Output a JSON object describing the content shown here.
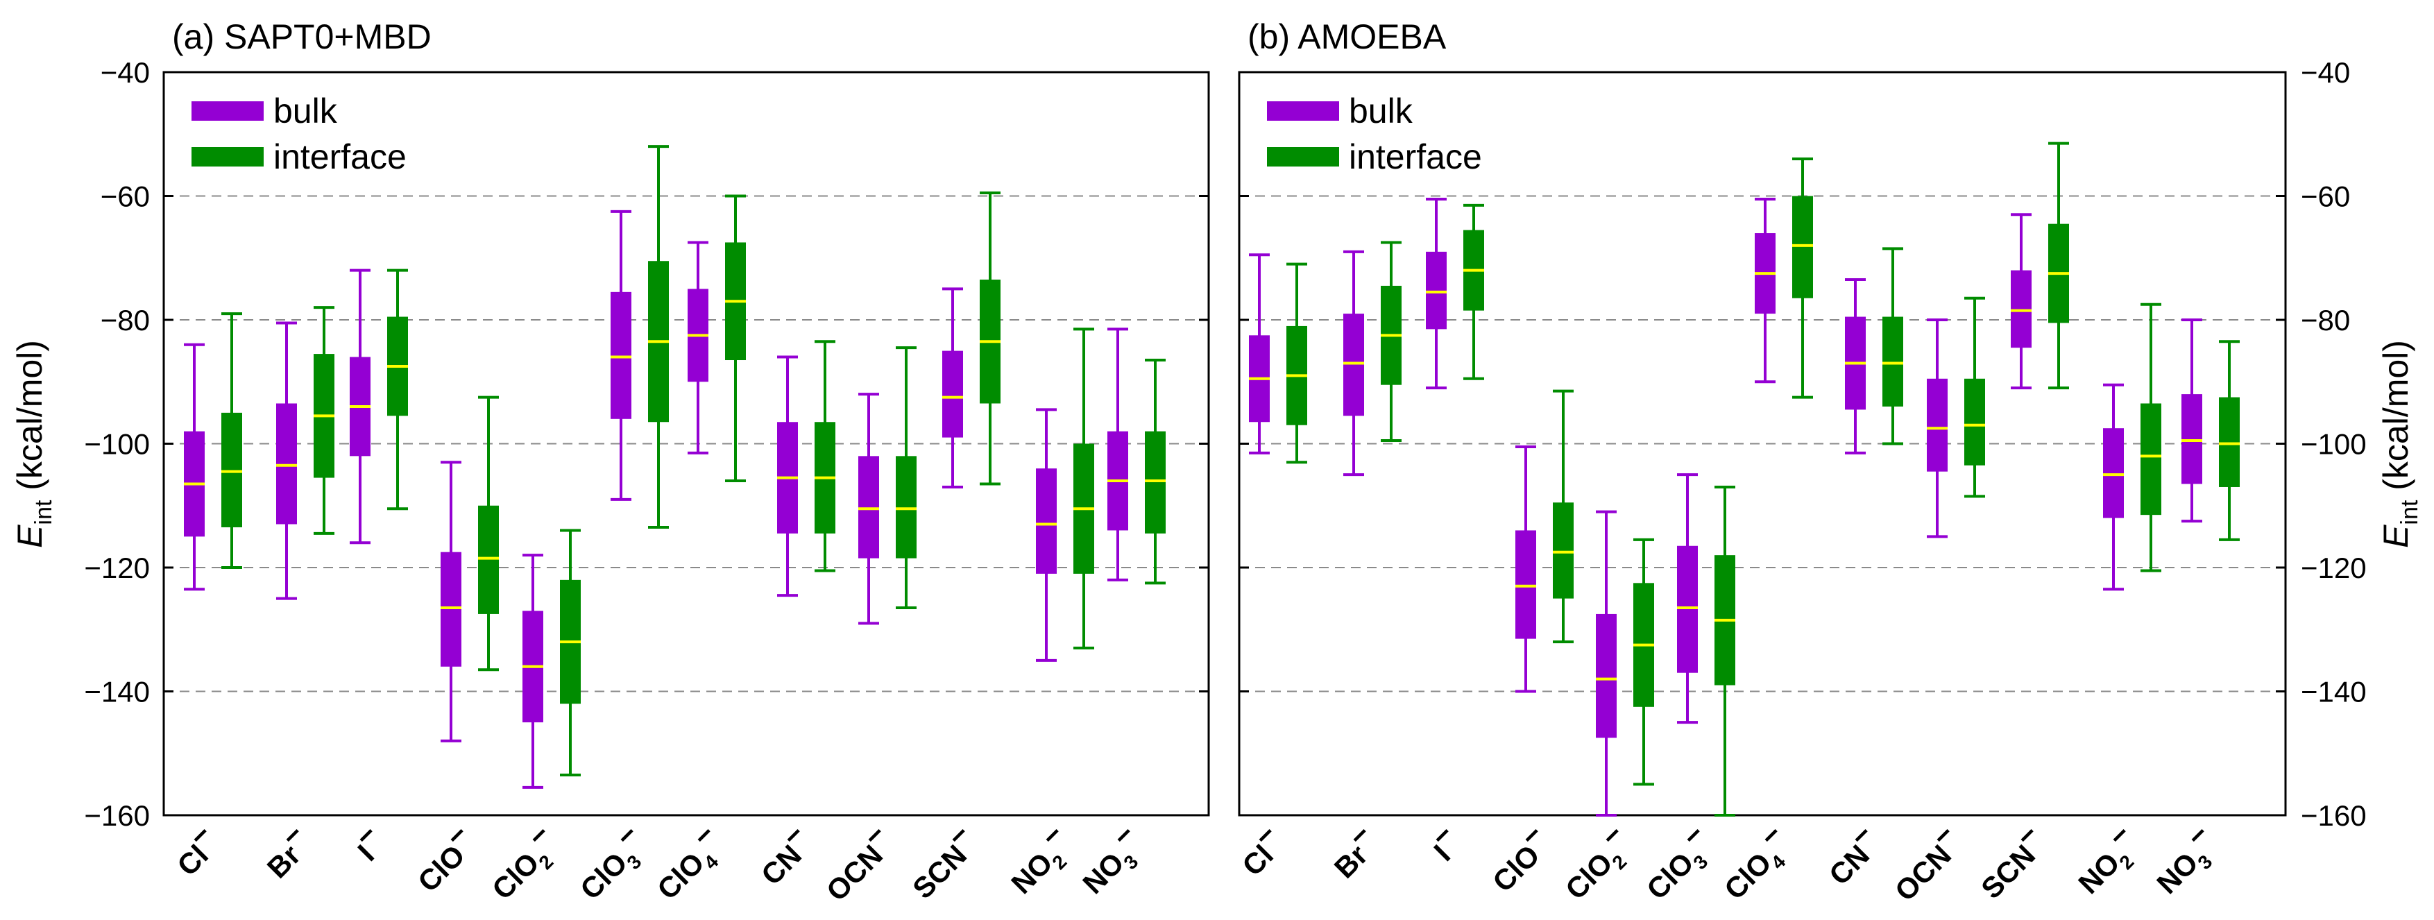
{
  "ylabel": {
    "main": "E",
    "sub": "int",
    "unit": " (kcal/mol)"
  },
  "chart_data": [
    {
      "type": "boxplot",
      "title": "(a) SAPT0+MBD",
      "ylim": [
        -160,
        -40
      ],
      "yticks": [
        -160,
        -140,
        -120,
        -100,
        -80,
        -60,
        -40
      ],
      "grid": "horizontal-dashed",
      "legend_position": "top-left",
      "legend": [
        "bulk",
        "interface"
      ],
      "categories": [
        {
          "base": "Cl",
          "sub": "",
          "sup": "−"
        },
        {
          "base": "Br",
          "sub": "",
          "sup": "−"
        },
        {
          "base": "I",
          "sub": "",
          "sup": "−"
        },
        {
          "base": "ClO",
          "sub": "",
          "sup": "−"
        },
        {
          "base": "ClO",
          "sub": "2",
          "sup": "−"
        },
        {
          "base": "ClO",
          "sub": "3",
          "sup": "−"
        },
        {
          "base": "ClO",
          "sub": "4",
          "sup": "−"
        },
        {
          "base": "CN",
          "sub": "",
          "sup": "−"
        },
        {
          "base": "OCN",
          "sub": "",
          "sup": "−"
        },
        {
          "base": "SCN",
          "sub": "",
          "sup": "−"
        },
        {
          "base": "NO",
          "sub": "2",
          "sup": "−"
        },
        {
          "base": "NO",
          "sub": "3",
          "sup": "−"
        }
      ],
      "series": [
        {
          "name": "bulk",
          "color": "#9400D3",
          "median_color": "#FFFF00",
          "boxes": [
            {
              "min": -123.5,
              "q1": -115,
              "median": -106.5,
              "q3": -98,
              "max": -84
            },
            {
              "min": -125,
              "q1": -113,
              "median": -103.5,
              "q3": -93.5,
              "max": -80.5
            },
            {
              "min": -116,
              "q1": -102,
              "median": -94,
              "q3": -86,
              "max": -72
            },
            {
              "min": -148,
              "q1": -136,
              "median": -126.5,
              "q3": -117.5,
              "max": -103
            },
            {
              "min": -155.5,
              "q1": -145,
              "median": -136,
              "q3": -127,
              "max": -118
            },
            {
              "min": -109,
              "q1": -96,
              "median": -86,
              "q3": -75.5,
              "max": -62.5
            },
            {
              "min": -101.5,
              "q1": -90,
              "median": -82.5,
              "q3": -75,
              "max": -67.5
            },
            {
              "min": -124.5,
              "q1": -114.5,
              "median": -105.5,
              "q3": -96.5,
              "max": -86
            },
            {
              "min": -129,
              "q1": -118.5,
              "median": -110.5,
              "q3": -102,
              "max": -92
            },
            {
              "min": -107,
              "q1": -99,
              "median": -92.5,
              "q3": -85,
              "max": -75
            },
            {
              "min": -135,
              "q1": -121,
              "median": -113,
              "q3": -104,
              "max": -94.5
            },
            {
              "min": -122,
              "q1": -114,
              "median": -106,
              "q3": -98,
              "max": -81.5
            }
          ]
        },
        {
          "name": "interface",
          "color": "#008C00",
          "median_color": "#FFFF00",
          "boxes": [
            {
              "min": -120,
              "q1": -113.5,
              "median": -104.5,
              "q3": -95,
              "max": -79
            },
            {
              "min": -114.5,
              "q1": -105.5,
              "median": -95.5,
              "q3": -85.5,
              "max": -78
            },
            {
              "min": -110.5,
              "q1": -95.5,
              "median": -87.5,
              "q3": -79.5,
              "max": -72
            },
            {
              "min": -136.5,
              "q1": -127.5,
              "median": -118.5,
              "q3": -110,
              "max": -92.5
            },
            {
              "min": -153.5,
              "q1": -142,
              "median": -132,
              "q3": -122,
              "max": -114
            },
            {
              "min": -113.5,
              "q1": -96.5,
              "median": -83.5,
              "q3": -70.5,
              "max": -52
            },
            {
              "min": -106,
              "q1": -86.5,
              "median": -77,
              "q3": -67.5,
              "max": -60
            },
            {
              "min": -120.5,
              "q1": -114.5,
              "median": -105.5,
              "q3": -96.5,
              "max": -83.5
            },
            {
              "min": -126.5,
              "q1": -118.5,
              "median": -110.5,
              "q3": -102,
              "max": -84.5
            },
            {
              "min": -106.5,
              "q1": -93.5,
              "median": -83.5,
              "q3": -73.5,
              "max": -59.5
            },
            {
              "min": -133,
              "q1": -121,
              "median": -110.5,
              "q3": -100,
              "max": -81.5
            },
            {
              "min": -122.5,
              "q1": -114.5,
              "median": -106,
              "q3": -98,
              "max": -86.5
            }
          ]
        }
      ]
    },
    {
      "type": "boxplot",
      "title": "(b) AMOEBA",
      "ylim": [
        -160,
        -40
      ],
      "yticks": [
        -160,
        -140,
        -120,
        -100,
        -80,
        -60,
        -40
      ],
      "grid": "horizontal-dashed",
      "legend_position": "top-left",
      "legend": [
        "bulk",
        "interface"
      ],
      "categories": [
        {
          "base": "Cl",
          "sub": "",
          "sup": "−"
        },
        {
          "base": "Br",
          "sub": "",
          "sup": "−"
        },
        {
          "base": "I",
          "sub": "",
          "sup": "−"
        },
        {
          "base": "ClO",
          "sub": "",
          "sup": "−"
        },
        {
          "base": "ClO",
          "sub": "2",
          "sup": "−"
        },
        {
          "base": "ClO",
          "sub": "3",
          "sup": "−"
        },
        {
          "base": "ClO",
          "sub": "4",
          "sup": "−"
        },
        {
          "base": "CN",
          "sub": "",
          "sup": "−"
        },
        {
          "base": "OCN",
          "sub": "",
          "sup": "−"
        },
        {
          "base": "SCN",
          "sub": "",
          "sup": "−"
        },
        {
          "base": "NO",
          "sub": "2",
          "sup": "−"
        },
        {
          "base": "NO",
          "sub": "3",
          "sup": "−"
        }
      ],
      "series": [
        {
          "name": "bulk",
          "color": "#9400D3",
          "median_color": "#FFFF00",
          "boxes": [
            {
              "min": -101.5,
              "q1": -96.5,
              "median": -89.5,
              "q3": -82.5,
              "max": -69.5
            },
            {
              "min": -105,
              "q1": -95.5,
              "median": -87,
              "q3": -79,
              "max": -69
            },
            {
              "min": -91,
              "q1": -81.5,
              "median": -75.5,
              "q3": -69,
              "max": -60.5
            },
            {
              "min": -140,
              "q1": -131.5,
              "median": -123,
              "q3": -114,
              "max": -100.5
            },
            {
              "min": -160,
              "q1": -147.5,
              "median": -138,
              "q3": -127.5,
              "max": -111
            },
            {
              "min": -145,
              "q1": -137,
              "median": -126.5,
              "q3": -116.5,
              "max": -105
            },
            {
              "min": -90,
              "q1": -79,
              "median": -72.5,
              "q3": -66,
              "max": -60.5
            },
            {
              "min": -101.5,
              "q1": -94.5,
              "median": -87,
              "q3": -79.5,
              "max": -73.5
            },
            {
              "min": -115,
              "q1": -104.5,
              "median": -97.5,
              "q3": -89.5,
              "max": -80
            },
            {
              "min": -91,
              "q1": -84.5,
              "median": -78.5,
              "q3": -72,
              "max": -63
            },
            {
              "min": -123.5,
              "q1": -112,
              "median": -105,
              "q3": -97.5,
              "max": -90.5
            },
            {
              "min": -112.5,
              "q1": -106.5,
              "median": -99.5,
              "q3": -92,
              "max": -80
            }
          ]
        },
        {
          "name": "interface",
          "color": "#008C00",
          "median_color": "#FFFF00",
          "boxes": [
            {
              "min": -103,
              "q1": -97,
              "median": -89,
              "q3": -81,
              "max": -71
            },
            {
              "min": -99.5,
              "q1": -90.5,
              "median": -82.5,
              "q3": -74.5,
              "max": -67.5
            },
            {
              "min": -89.5,
              "q1": -78.5,
              "median": -72,
              "q3": -65.5,
              "max": -61.5
            },
            {
              "min": -132,
              "q1": -125,
              "median": -117.5,
              "q3": -109.5,
              "max": -91.5
            },
            {
              "min": -155,
              "q1": -142.5,
              "median": -132.5,
              "q3": -122.5,
              "max": -115.5
            },
            {
              "min": -160,
              "q1": -139,
              "median": -128.5,
              "q3": -118,
              "max": -107
            },
            {
              "min": -92.5,
              "q1": -76.5,
              "median": -68,
              "q3": -60,
              "max": -54
            },
            {
              "min": -100,
              "q1": -94,
              "median": -87,
              "q3": -79.5,
              "max": -68.5
            },
            {
              "min": -108.5,
              "q1": -103.5,
              "median": -97,
              "q3": -89.5,
              "max": -76.5
            },
            {
              "min": -91,
              "q1": -80.5,
              "median": -72.5,
              "q3": -64.5,
              "max": -51.5
            },
            {
              "min": -120.5,
              "q1": -111.5,
              "median": -102,
              "q3": -93.5,
              "max": -77.5
            },
            {
              "min": -115.5,
              "q1": -107,
              "median": -100,
              "q3": -92.5,
              "max": -83.5
            }
          ]
        }
      ]
    }
  ]
}
